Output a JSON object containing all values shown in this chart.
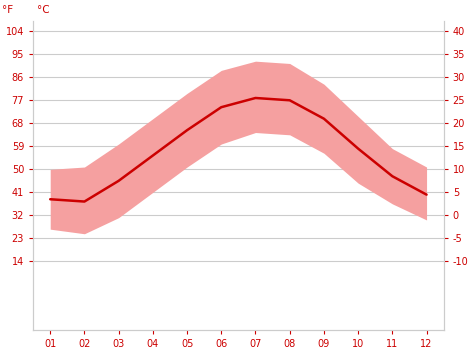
{
  "months": [
    1,
    2,
    3,
    4,
    5,
    6,
    7,
    8,
    9,
    10,
    11,
    12
  ],
  "avg_temp_f": [
    38.3,
    37.4,
    45.5,
    55.4,
    65.3,
    74.3,
    77.9,
    77.0,
    69.8,
    58.1,
    47.3,
    40.1
  ],
  "max_temp_f": [
    50.0,
    50.9,
    59.9,
    69.8,
    79.7,
    88.7,
    92.3,
    91.4,
    83.3,
    70.7,
    58.1,
    50.9
  ],
  "min_temp_f": [
    26.6,
    24.8,
    31.1,
    41.0,
    50.9,
    59.9,
    64.4,
    63.5,
    56.3,
    44.6,
    36.5,
    30.2
  ],
  "ylim_f": [
    -13,
    108
  ],
  "yticks_f": [
    14,
    23,
    32,
    41,
    50,
    59,
    68,
    77,
    86,
    95,
    104
  ],
  "yticks_c": [
    -10,
    -5,
    0,
    5,
    10,
    15,
    20,
    25,
    30,
    35,
    40
  ],
  "line_color": "#cc0000",
  "fill_color": "#f5a0a0",
  "grid_color": "#cccccc",
  "tick_label_color": "#cc0000",
  "background_color": "#ffffff",
  "label_f": "°F",
  "label_c": "°C"
}
